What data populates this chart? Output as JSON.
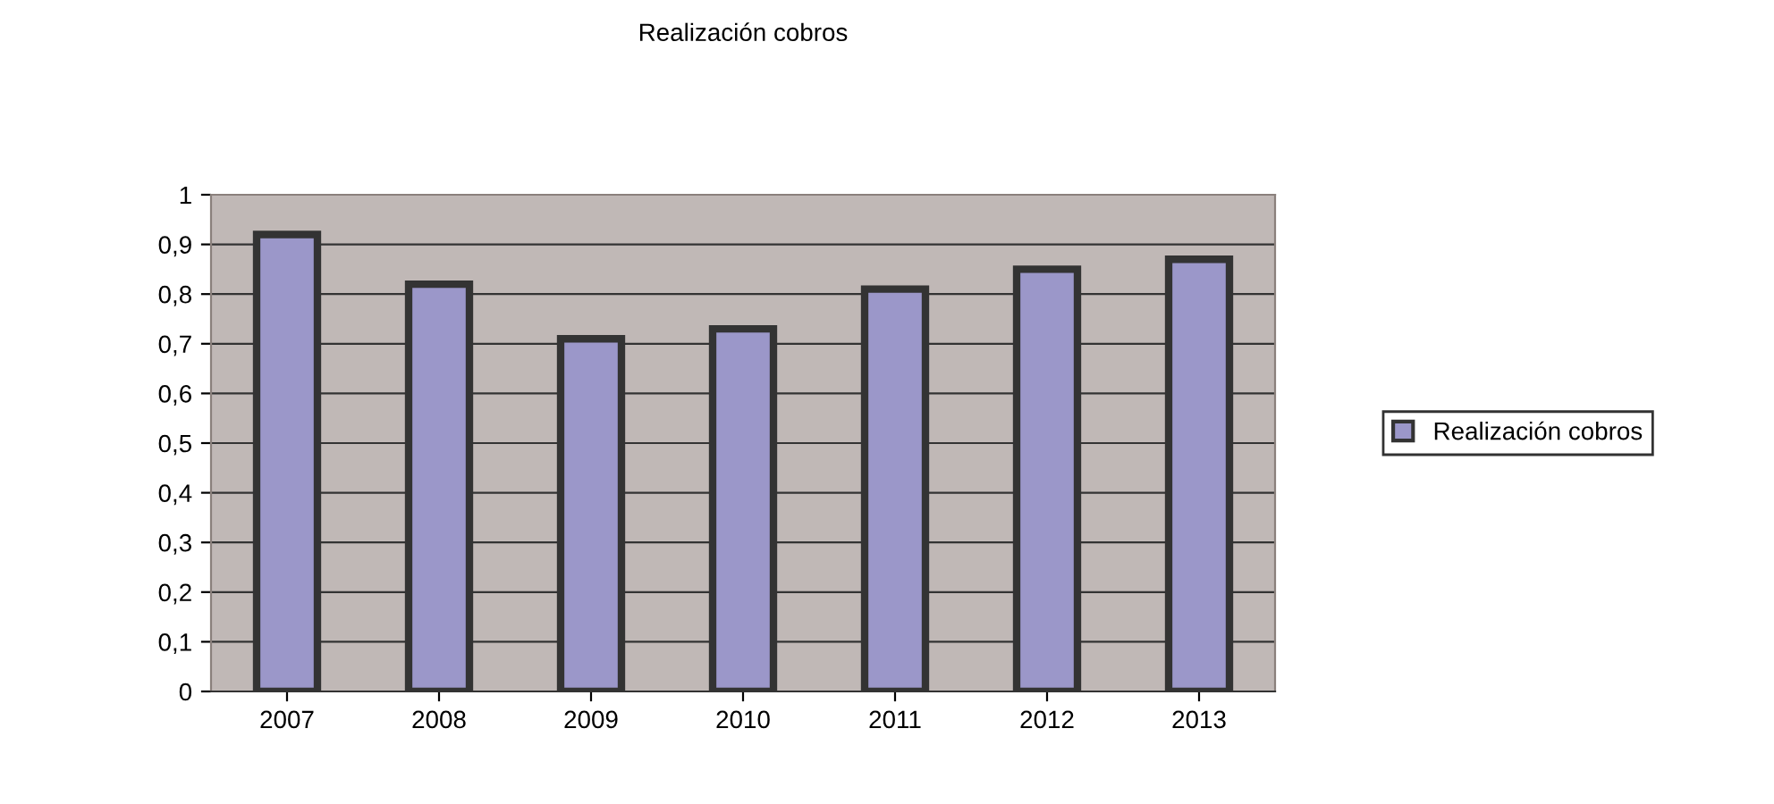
{
  "chart_data": {
    "type": "bar",
    "title": "Realización cobros",
    "categories": [
      "2007",
      "2008",
      "2009",
      "2010",
      "2011",
      "2012",
      "2013"
    ],
    "series": [
      {
        "name": "Realización cobros",
        "color": "#9b97c9",
        "values": [
          0.92,
          0.82,
          0.71,
          0.73,
          0.81,
          0.85,
          0.87
        ]
      }
    ],
    "ylim": [
      0,
      1
    ],
    "yticks": [
      0,
      {
        "value": 0.1,
        "label": "0,1"
      },
      {
        "value": 0.2,
        "label": "0,2"
      },
      {
        "value": 0.3,
        "label": "0,3"
      },
      {
        "value": 0.4,
        "label": "0,4"
      },
      {
        "value": 0.5,
        "label": "0,5"
      },
      {
        "value": 0.6,
        "label": "0,6"
      },
      {
        "value": 0.7,
        "label": "0,7"
      },
      {
        "value": 0.8,
        "label": "0,8"
      },
      {
        "value": 0.9,
        "label": "0,9"
      },
      1
    ],
    "grid": "y",
    "legend": "right"
  }
}
